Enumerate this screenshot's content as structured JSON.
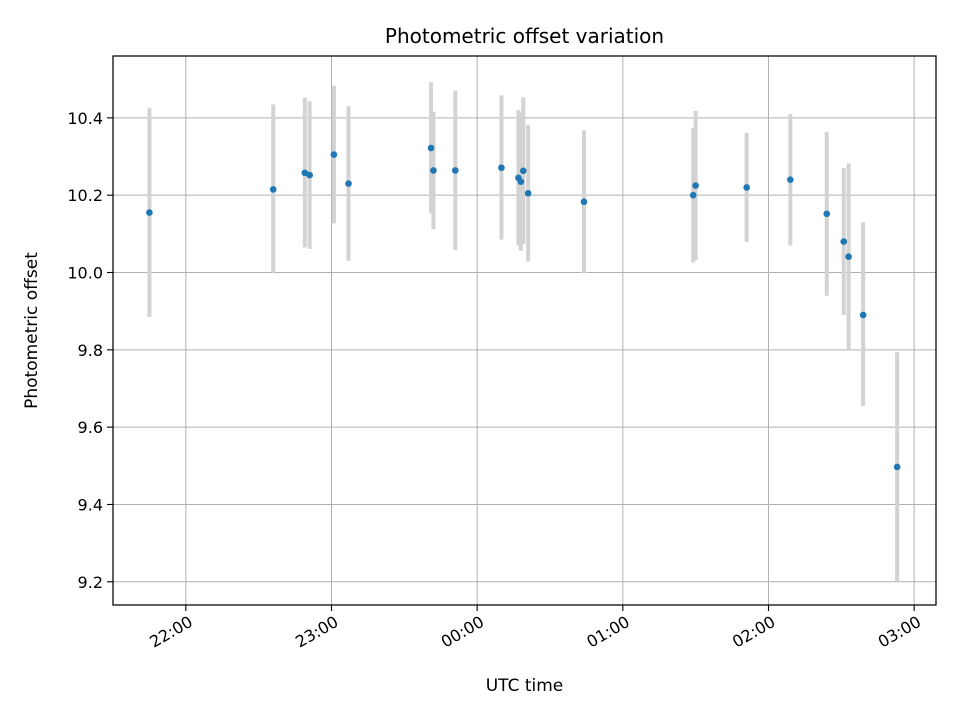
{
  "chart_data": {
    "type": "scatter",
    "title": "Photometric offset variation",
    "xlabel": "UTC time",
    "ylabel": "Photometric offset",
    "x_unit": "hours since 00:00 UTC",
    "xlim": [
      -2.5,
      3.15
    ],
    "ylim": [
      9.14,
      10.56
    ],
    "x_ticks": [
      {
        "value": -2,
        "label": "22:00"
      },
      {
        "value": -1,
        "label": "23:00"
      },
      {
        "value": 0,
        "label": "00:00"
      },
      {
        "value": 1,
        "label": "01:00"
      },
      {
        "value": 2,
        "label": "02:00"
      },
      {
        "value": 3,
        "label": "03:00"
      }
    ],
    "y_ticks": [
      9.2,
      9.4,
      9.6,
      9.8,
      10.0,
      10.2,
      10.4
    ],
    "grid": true,
    "colors": {
      "marker": "#1f77b4",
      "errorbar": "#d3d3d3",
      "grid": "#b0b0b0"
    },
    "points": [
      {
        "t": "21:45",
        "y": 10.155,
        "ylo": 9.885,
        "yhi": 10.425
      },
      {
        "t": "22:36",
        "y": 10.215,
        "ylo": 9.998,
        "yhi": 10.435
      },
      {
        "t": "22:49",
        "y": 10.258,
        "ylo": 10.065,
        "yhi": 10.452
      },
      {
        "t": "22:51",
        "y": 10.252,
        "ylo": 10.061,
        "yhi": 10.443
      },
      {
        "t": "23:01",
        "y": 10.305,
        "ylo": 10.127,
        "yhi": 10.483
      },
      {
        "t": "23:07",
        "y": 10.23,
        "ylo": 10.03,
        "yhi": 10.43
      },
      {
        "t": "23:41",
        "y": 10.322,
        "ylo": 10.153,
        "yhi": 10.492
      },
      {
        "t": "23:42",
        "y": 10.264,
        "ylo": 10.112,
        "yhi": 10.416
      },
      {
        "t": "23:51",
        "y": 10.264,
        "ylo": 10.058,
        "yhi": 10.47
      },
      {
        "t": "00:10",
        "y": 10.271,
        "ylo": 10.085,
        "yhi": 10.458
      },
      {
        "t": "00:17",
        "y": 10.245,
        "ylo": 10.07,
        "yhi": 10.42
      },
      {
        "t": "00:18",
        "y": 10.235,
        "ylo": 10.056,
        "yhi": 10.414
      },
      {
        "t": "00:19",
        "y": 10.263,
        "ylo": 10.073,
        "yhi": 10.453
      },
      {
        "t": "00:21",
        "y": 10.205,
        "ylo": 10.028,
        "yhi": 10.382
      },
      {
        "t": "00:44",
        "y": 10.183,
        "ylo": 9.998,
        "yhi": 10.368
      },
      {
        "t": "01:29",
        "y": 10.2,
        "ylo": 10.026,
        "yhi": 10.374
      },
      {
        "t": "01:30",
        "y": 10.225,
        "ylo": 10.032,
        "yhi": 10.418
      },
      {
        "t": "01:51",
        "y": 10.22,
        "ylo": 10.079,
        "yhi": 10.361
      },
      {
        "t": "02:09",
        "y": 10.24,
        "ylo": 10.07,
        "yhi": 10.41
      },
      {
        "t": "02:24",
        "y": 10.152,
        "ylo": 9.94,
        "yhi": 10.364
      },
      {
        "t": "02:31",
        "y": 10.08,
        "ylo": 9.89,
        "yhi": 10.27
      },
      {
        "t": "02:33",
        "y": 10.041,
        "ylo": 9.8,
        "yhi": 10.282
      },
      {
        "t": "02:39",
        "y": 9.89,
        "ylo": 9.655,
        "yhi": 10.13
      },
      {
        "t": "02:53",
        "y": 9.497,
        "ylo": 9.2,
        "yhi": 9.794
      }
    ]
  }
}
